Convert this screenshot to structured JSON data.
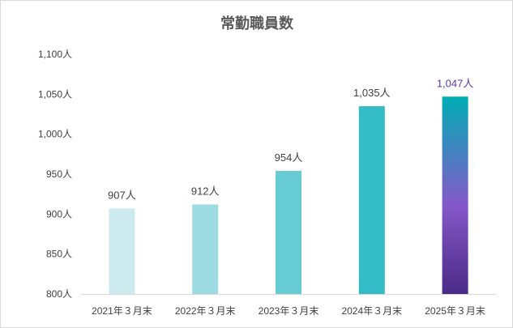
{
  "chart_data": {
    "type": "bar",
    "title": "常勤職員数",
    "categories": [
      "2021年３月末",
      "2022年３月末",
      "2023年３月末",
      "2024年３月末",
      "2025年３月末"
    ],
    "values": [
      907,
      912,
      954,
      1035,
      1047
    ],
    "data_labels": [
      "907人",
      "912人",
      "954人",
      "1,035人",
      "1,047人"
    ],
    "ylim": [
      800,
      1100
    ],
    "yticks": [
      800,
      850,
      900,
      950,
      1000,
      1050,
      1100
    ],
    "ytick_labels": [
      "800人",
      "850人",
      "900人",
      "950人",
      "1,000人",
      "1,050人",
      "1,100人"
    ],
    "grid": false,
    "legend": "none",
    "colors": [
      "#cdebee",
      "#9ddbe2",
      "#66cbd3",
      "#33bcc5",
      "#00adb5"
    ],
    "highlight_gradient": [
      "#00adb5",
      "#8458c8",
      "#4b2a86"
    ],
    "highlight_label_color": "#5b3aa0"
  }
}
